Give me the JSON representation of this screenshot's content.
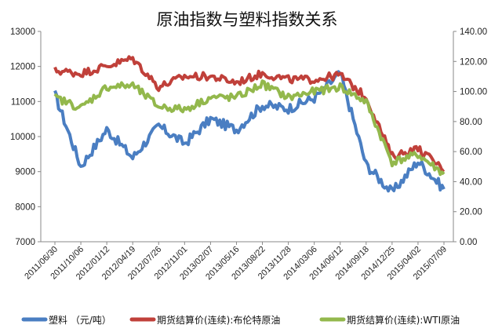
{
  "chart_data": {
    "type": "line",
    "title": "原油指数与塑料指数关系",
    "x": [
      "2011/06/30",
      "2011/10/06",
      "2012/01/12",
      "2012/04/19",
      "2012/07/26",
      "2012/11/01",
      "2013/02/07",
      "2013/05/16",
      "2013/08/22",
      "2013/11/28",
      "2014/03/06",
      "2014/06/12",
      "2014/09/18",
      "2014/12/25",
      "2015/04/02",
      "2015/07/09"
    ],
    "y_left": {
      "ticks": [
        "7000",
        "8000",
        "9000",
        "10000",
        "11000",
        "12000",
        "13000"
      ],
      "ylim": [
        7000,
        13000
      ]
    },
    "y_right": {
      "ticks": [
        "0.00",
        "20.00",
        "40.00",
        "60.00",
        "80.00",
        "100.00",
        "120.00",
        "140.00"
      ],
      "ylim": [
        0,
        140
      ]
    },
    "grid": false,
    "legend_position": "bottom",
    "series": [
      {
        "name": "塑料 （元/吨）",
        "axis": "left",
        "color": "#4a7ec2",
        "values": [
          11200,
          9150,
          10200,
          9400,
          10300,
          9800,
          10500,
          10200,
          10900,
          10800,
          11100,
          11800,
          9200,
          8400,
          9300,
          8500
        ]
      },
      {
        "name": "期货结算价(连续):布伦特原油",
        "axis": "right",
        "color": "#c0403a",
        "values": [
          114,
          112,
          117,
          122,
          103,
          110,
          110,
          106,
          112,
          108,
          108,
          111,
          96,
          57,
          62,
          48
        ]
      },
      {
        "name": "期货结算价(连续):WTI原油",
        "axis": "right",
        "color": "#93b84c",
        "values": [
          96,
          89,
          103,
          104,
          90,
          88,
          96,
          96,
          105,
          96,
          100,
          103,
          93,
          53,
          58,
          45
        ]
      }
    ]
  }
}
